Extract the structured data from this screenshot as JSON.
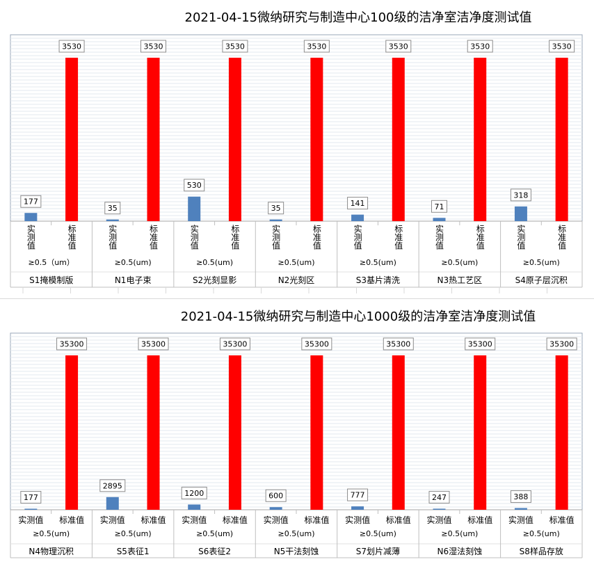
{
  "chart_data": [
    {
      "type": "bar",
      "title": "2021-04-15微纳研究与制造中心100级的洁净室洁净度测试值",
      "bar_labels": [
        "实测值",
        "标准值"
      ],
      "particle_labels": [
        "≥0.5（um）",
        "≥0.5(um)",
        "≥0.5(um)",
        "≥0.5(um)",
        "≥0.5(um)",
        "≥0.5(um)",
        "≥0.5(um)"
      ],
      "groups": [
        "S1掩模制版",
        "N1电子束",
        "S2光刻显影",
        "N2光刻区",
        "S3基片清洗",
        "N3热工艺区",
        "S4原子层沉积"
      ],
      "series": [
        {
          "name": "实测值",
          "color": "#4f81bd",
          "values": [
            177,
            35,
            530,
            35,
            141,
            71,
            318
          ]
        },
        {
          "name": "标准值",
          "color": "#ff0000",
          "values": [
            3530,
            3530,
            3530,
            3530,
            3530,
            3530,
            3530
          ]
        }
      ],
      "ylim": [
        0,
        3530
      ],
      "grid": true
    },
    {
      "type": "bar",
      "title": "2021-04-15微纳研究与制造中心1000级的洁净室洁净度测试值",
      "bar_labels": [
        "实测值",
        "标准值"
      ],
      "particle_labels": [
        "≥0.5(um)",
        "≥0.5(um)",
        "≥0.5(um)",
        "≥0.5(um)",
        "≥0.5(um)",
        "≥0.5(um)",
        "≥0.5(um)"
      ],
      "groups": [
        "N4物理沉积",
        "S5表征1",
        "S6表征2",
        "N5干法刻蚀",
        "S7划片减薄",
        "N6湿法刻蚀",
        "S8样品存放"
      ],
      "series": [
        {
          "name": "实测值",
          "color": "#4f81bd",
          "values": [
            177,
            2895,
            1200,
            600,
            777,
            247,
            388
          ]
        },
        {
          "name": "标准值",
          "color": "#ff0000",
          "values": [
            35300,
            35300,
            35300,
            35300,
            35300,
            35300,
            35300
          ]
        }
      ],
      "ylim": [
        0,
        35300
      ],
      "grid": true
    }
  ]
}
